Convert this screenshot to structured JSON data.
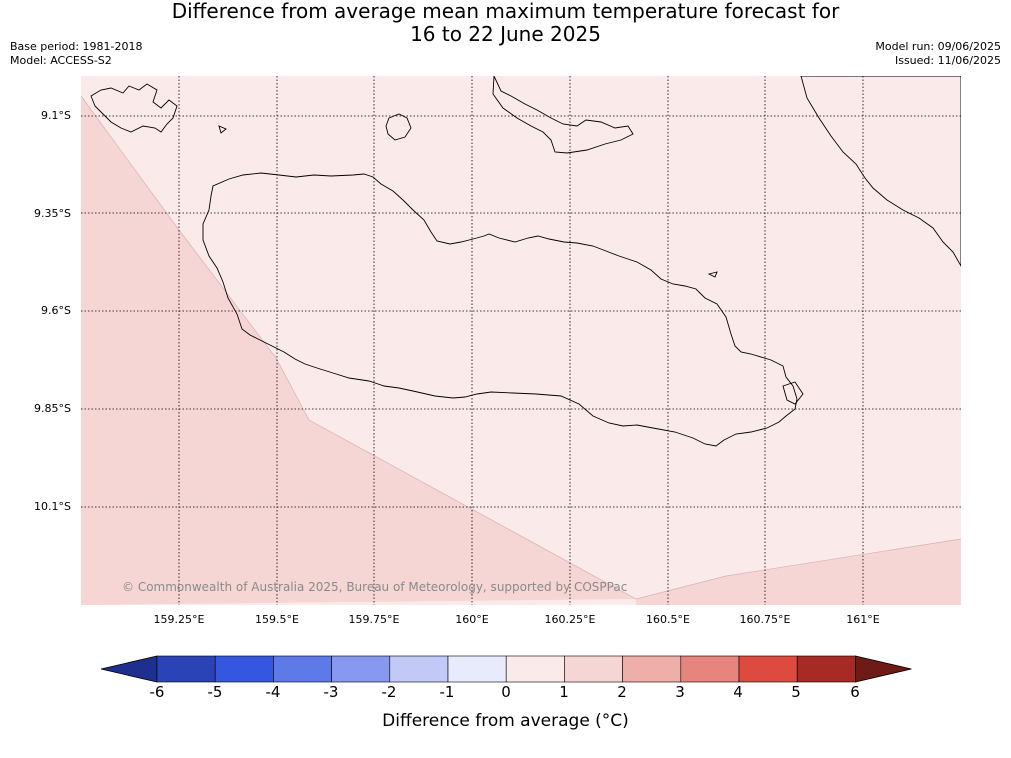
{
  "title_line1": "Difference from average mean maximum temperature forecast for",
  "title_line2": "16 to 22 June 2025",
  "meta": {
    "base_period": "Base period: 1981-2018",
    "model": "Model: ACCESS-S2",
    "model_run": "Model run: 09/06/2025",
    "issued": "Issued: 11/06/2025"
  },
  "map": {
    "latitudes": [
      "9.1°S",
      "9.35°S",
      "9.6°S",
      "9.85°S",
      "10.1°S"
    ],
    "longitudes": [
      "159.25°E",
      "159.5°E",
      "159.75°E",
      "160°E",
      "160.25°E",
      "160.5°E",
      "160.75°E",
      "161°E"
    ],
    "copyright": "© Commonwealth of Australia 2025, Bureau of Meteorology, supported by COSPPac",
    "region_colors": {
      "zero_to_one": "#fbeaea",
      "one_to_two": "#f6d6d4"
    }
  },
  "colorbar": {
    "ticks": [
      "-6",
      "-5",
      "-4",
      "-3",
      "-2",
      "-1",
      "0",
      "1",
      "2",
      "3",
      "4",
      "5",
      "6"
    ],
    "colors": [
      "#1f2f8f",
      "#2a44b8",
      "#3557e0",
      "#5e79e8",
      "#8799ee",
      "#c2c9f6",
      "#e8ebfc",
      "#fbeaea",
      "#f6d6d4",
      "#eeaeaa",
      "#e6847e",
      "#dc4a40",
      "#a82a24",
      "#6e1a16"
    ],
    "label": "Difference from average (°C)"
  }
}
